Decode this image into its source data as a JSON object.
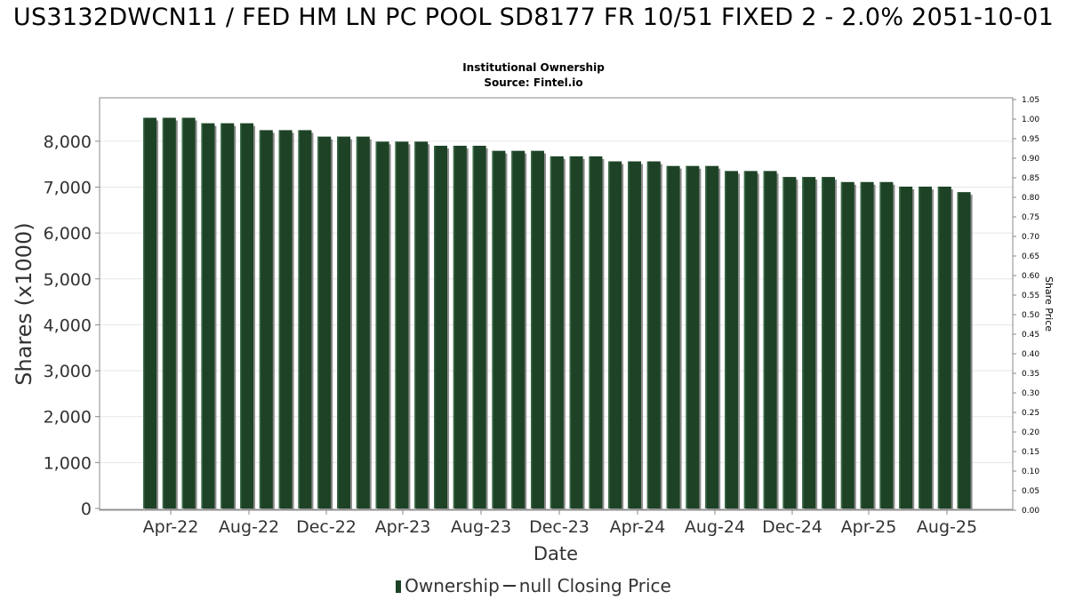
{
  "chart_data": {
    "type": "bar",
    "title": "US3132DWCN11 / FED HM LN PC POOL SD8177 FR 10/51 FIXED 2 - 2.0% 2051-10-01",
    "subtitle": "Institutional Ownership",
    "source": "Source: Fintel.io",
    "xlabel": "Date",
    "ylabel": "Shares (x1000)",
    "y2label": "Share Price",
    "ylim": [
      0,
      8950
    ],
    "y_ticks": [
      "0",
      "1,000",
      "2,000",
      "3,000",
      "4,000",
      "5,000",
      "6,000",
      "7,000",
      "8,000"
    ],
    "y2lim": [
      0,
      1.05
    ],
    "y2_ticks": [
      "0.00",
      "0.05",
      "0.10",
      "0.15",
      "0.20",
      "0.25",
      "0.30",
      "0.35",
      "0.40",
      "0.45",
      "0.50",
      "0.55",
      "0.60",
      "0.65",
      "0.70",
      "0.75",
      "0.80",
      "0.85",
      "0.90",
      "0.95",
      "1.00",
      "1.05"
    ],
    "x_ticks": [
      "Apr-22",
      "Aug-22",
      "Dec-22",
      "Apr-23",
      "Aug-23",
      "Dec-23",
      "Apr-24",
      "Aug-24",
      "Dec-24",
      "Apr-25",
      "Aug-25"
    ],
    "grid": true,
    "legend_position": "bottom",
    "bar_color": "#1e4226",
    "series": [
      {
        "name": "Ownership",
        "values": [
          8510,
          8510,
          8510,
          8390,
          8390,
          8390,
          8240,
          8240,
          8240,
          8100,
          8100,
          8100,
          7990,
          7990,
          7990,
          7900,
          7900,
          7900,
          7790,
          7790,
          7790,
          7670,
          7670,
          7670,
          7560,
          7560,
          7560,
          7460,
          7460,
          7460,
          7350,
          7350,
          7350,
          7220,
          7220,
          7220,
          7110,
          7110,
          7110,
          7010,
          7010,
          7010,
          6890
        ]
      }
    ],
    "legend": [
      "Ownership",
      "null Closing Price"
    ]
  }
}
